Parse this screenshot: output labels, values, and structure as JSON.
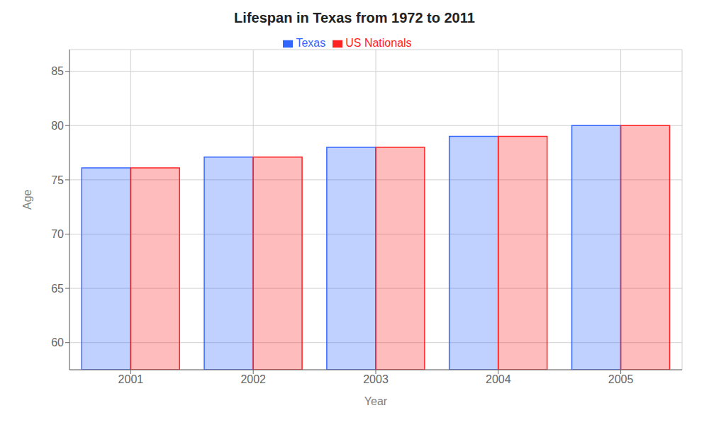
{
  "chart_data": {
    "type": "bar",
    "title": "Lifespan in Texas from 1972 to 2011",
    "xlabel": "Year",
    "ylabel": "Age",
    "categories": [
      2001,
      2002,
      2003,
      2004,
      2005
    ],
    "series": [
      {
        "name": "Texas",
        "color": "#3366ff",
        "values": [
          76.1,
          77.1,
          78.0,
          79.0,
          80.0
        ]
      },
      {
        "name": "US Nationals",
        "color": "#ff2222",
        "values": [
          76.1,
          77.1,
          78.0,
          79.0,
          80.0
        ]
      }
    ],
    "ylim": [
      57.5,
      87
    ],
    "yticks": [
      60,
      65,
      70,
      75,
      80,
      85
    ],
    "grid": true,
    "legend": "top"
  }
}
